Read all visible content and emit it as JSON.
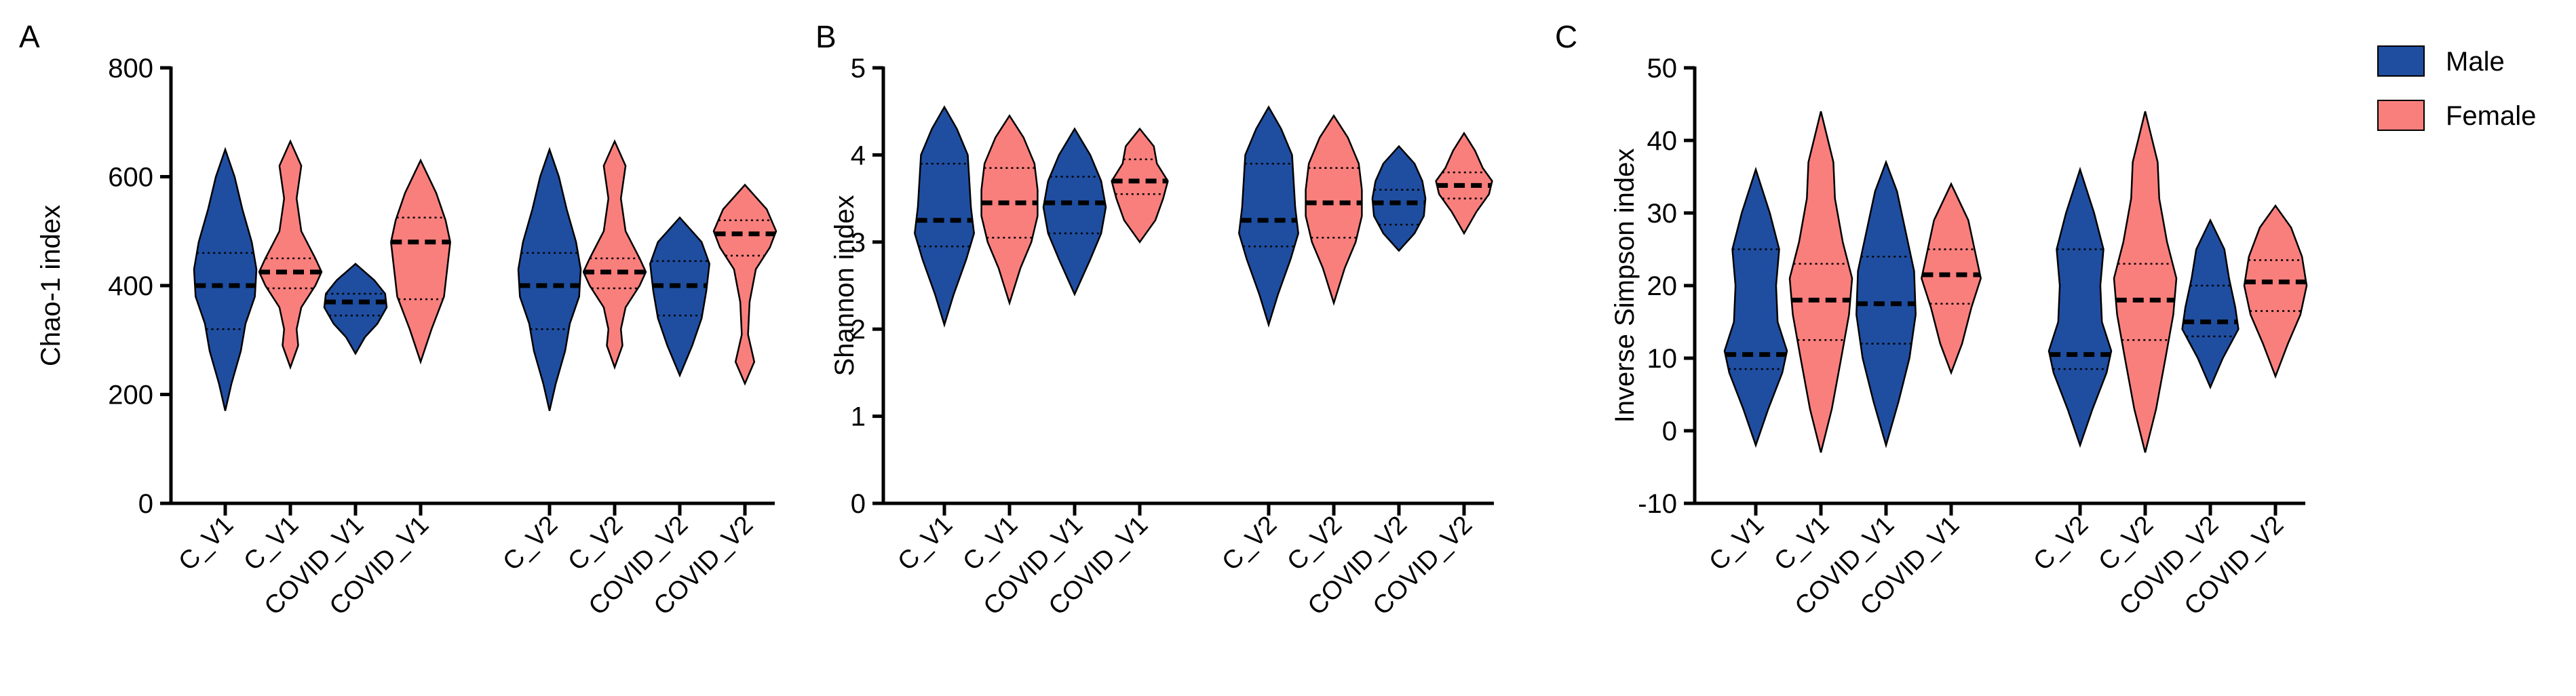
{
  "colors": {
    "male": "#1f4ea1",
    "female": "#f97f7d",
    "stroke": "#000000"
  },
  "legend": [
    {
      "label": "Male",
      "color": "#1f4ea1"
    },
    {
      "label": "Female",
      "color": "#f97f7d"
    }
  ],
  "chart_data": [
    {
      "panel": "A",
      "type": "violin",
      "ylabel": "Chao-1 index",
      "ylim": [
        0,
        800
      ],
      "yticks": [
        0,
        200,
        400,
        600,
        800
      ],
      "categories": [
        "C_V1",
        "C_V1",
        "COVID_V1",
        "COVID_V1",
        "C_V2",
        "C_V2",
        "COVID_V2",
        "COVID_V2"
      ],
      "groups": [
        {
          "sex": "male",
          "min": 170,
          "max": 650,
          "q1": 320,
          "median": 400,
          "q3": 460,
          "shape": [
            [
              170,
              0.0
            ],
            [
              220,
              0.2
            ],
            [
              280,
              0.5
            ],
            [
              330,
              0.65
            ],
            [
              380,
              0.95
            ],
            [
              430,
              1.0
            ],
            [
              480,
              0.85
            ],
            [
              540,
              0.55
            ],
            [
              600,
              0.3
            ],
            [
              650,
              0.0
            ]
          ]
        },
        {
          "sex": "female",
          "min": 250,
          "max": 665,
          "q1": 395,
          "median": 425,
          "q3": 450,
          "shape": [
            [
              250,
              0.0
            ],
            [
              290,
              0.25
            ],
            [
              320,
              0.2
            ],
            [
              360,
              0.35
            ],
            [
              400,
              0.8
            ],
            [
              425,
              1.0
            ],
            [
              450,
              0.8
            ],
            [
              500,
              0.35
            ],
            [
              560,
              0.2
            ],
            [
              620,
              0.35
            ],
            [
              665,
              0.0
            ]
          ]
        },
        {
          "sex": "male",
          "min": 275,
          "max": 440,
          "q1": 345,
          "median": 370,
          "q3": 385,
          "shape": [
            [
              275,
              0.0
            ],
            [
              305,
              0.3
            ],
            [
              330,
              0.7
            ],
            [
              360,
              1.0
            ],
            [
              385,
              0.95
            ],
            [
              410,
              0.6
            ],
            [
              440,
              0.0
            ]
          ]
        },
        {
          "sex": "female",
          "min": 260,
          "max": 630,
          "q1": 375,
          "median": 480,
          "q3": 525,
          "shape": [
            [
              260,
              0.0
            ],
            [
              320,
              0.35
            ],
            [
              380,
              0.75
            ],
            [
              430,
              0.85
            ],
            [
              480,
              0.95
            ],
            [
              520,
              0.8
            ],
            [
              570,
              0.5
            ],
            [
              630,
              0.0
            ]
          ]
        },
        {
          "sex": "male",
          "min": 170,
          "max": 650,
          "q1": 320,
          "median": 400,
          "q3": 460,
          "shape": [
            [
              170,
              0.0
            ],
            [
              220,
              0.2
            ],
            [
              280,
              0.5
            ],
            [
              330,
              0.65
            ],
            [
              380,
              0.95
            ],
            [
              430,
              1.0
            ],
            [
              480,
              0.85
            ],
            [
              540,
              0.55
            ],
            [
              600,
              0.3
            ],
            [
              650,
              0.0
            ]
          ]
        },
        {
          "sex": "female",
          "min": 250,
          "max": 665,
          "q1": 395,
          "median": 425,
          "q3": 450,
          "shape": [
            [
              250,
              0.0
            ],
            [
              290,
              0.25
            ],
            [
              320,
              0.2
            ],
            [
              360,
              0.35
            ],
            [
              400,
              0.8
            ],
            [
              425,
              1.0
            ],
            [
              450,
              0.8
            ],
            [
              500,
              0.35
            ],
            [
              560,
              0.2
            ],
            [
              620,
              0.35
            ],
            [
              665,
              0.0
            ]
          ]
        },
        {
          "sex": "male",
          "min": 235,
          "max": 525,
          "q1": 345,
          "median": 400,
          "q3": 445,
          "shape": [
            [
              235,
              0.0
            ],
            [
              290,
              0.4
            ],
            [
              340,
              0.7
            ],
            [
              390,
              0.85
            ],
            [
              440,
              0.95
            ],
            [
              480,
              0.7
            ],
            [
              525,
              0.0
            ]
          ]
        },
        {
          "sex": "female",
          "min": 220,
          "max": 585,
          "q1": 455,
          "median": 495,
          "q3": 520,
          "shape": [
            [
              220,
              0.0
            ],
            [
              260,
              0.3
            ],
            [
              310,
              0.1
            ],
            [
              370,
              0.15
            ],
            [
              430,
              0.35
            ],
            [
              470,
              0.8
            ],
            [
              500,
              1.0
            ],
            [
              540,
              0.7
            ],
            [
              585,
              0.0
            ]
          ]
        }
      ]
    },
    {
      "panel": "B",
      "type": "violin",
      "ylabel": "Shannon index",
      "ylim": [
        0,
        5
      ],
      "yticks": [
        0,
        1,
        2,
        3,
        4,
        5
      ],
      "categories": [
        "C_V1",
        "C_V1",
        "COVID_V1",
        "COVID_V1",
        "C_V2",
        "C_V2",
        "COVID_V2",
        "COVID_V2"
      ],
      "groups": [
        {
          "sex": "male",
          "min": 2.05,
          "max": 4.55,
          "q1": 2.95,
          "median": 3.25,
          "q3": 3.9,
          "shape": [
            [
              2.05,
              0.0
            ],
            [
              2.4,
              0.3
            ],
            [
              2.8,
              0.7
            ],
            [
              3.1,
              0.95
            ],
            [
              3.4,
              0.85
            ],
            [
              3.7,
              0.8
            ],
            [
              4.0,
              0.75
            ],
            [
              4.3,
              0.4
            ],
            [
              4.55,
              0.0
            ]
          ]
        },
        {
          "sex": "female",
          "min": 2.3,
          "max": 4.45,
          "q1": 3.05,
          "median": 3.45,
          "q3": 3.85,
          "shape": [
            [
              2.3,
              0.0
            ],
            [
              2.7,
              0.35
            ],
            [
              3.0,
              0.7
            ],
            [
              3.3,
              0.9
            ],
            [
              3.6,
              0.9
            ],
            [
              3.9,
              0.8
            ],
            [
              4.2,
              0.45
            ],
            [
              4.45,
              0.0
            ]
          ]
        },
        {
          "sex": "male",
          "min": 2.4,
          "max": 4.3,
          "q1": 3.1,
          "median": 3.45,
          "q3": 3.75,
          "shape": [
            [
              2.4,
              0.0
            ],
            [
              2.8,
              0.5
            ],
            [
              3.1,
              0.85
            ],
            [
              3.4,
              1.0
            ],
            [
              3.7,
              0.85
            ],
            [
              4.0,
              0.5
            ],
            [
              4.3,
              0.0
            ]
          ]
        },
        {
          "sex": "female",
          "min": 3.0,
          "max": 4.3,
          "q1": 3.55,
          "median": 3.7,
          "q3": 3.95,
          "shape": [
            [
              3.0,
              0.0
            ],
            [
              3.25,
              0.5
            ],
            [
              3.5,
              0.75
            ],
            [
              3.7,
              0.9
            ],
            [
              3.9,
              0.55
            ],
            [
              4.1,
              0.45
            ],
            [
              4.3,
              0.0
            ]
          ]
        },
        {
          "sex": "male",
          "min": 2.05,
          "max": 4.55,
          "q1": 2.95,
          "median": 3.25,
          "q3": 3.9,
          "shape": [
            [
              2.05,
              0.0
            ],
            [
              2.4,
              0.3
            ],
            [
              2.8,
              0.7
            ],
            [
              3.1,
              0.95
            ],
            [
              3.4,
              0.85
            ],
            [
              3.7,
              0.8
            ],
            [
              4.0,
              0.75
            ],
            [
              4.3,
              0.4
            ],
            [
              4.55,
              0.0
            ]
          ]
        },
        {
          "sex": "female",
          "min": 2.3,
          "max": 4.45,
          "q1": 3.05,
          "median": 3.45,
          "q3": 3.85,
          "shape": [
            [
              2.3,
              0.0
            ],
            [
              2.7,
              0.35
            ],
            [
              3.0,
              0.7
            ],
            [
              3.3,
              0.9
            ],
            [
              3.6,
              0.9
            ],
            [
              3.9,
              0.8
            ],
            [
              4.2,
              0.45
            ],
            [
              4.45,
              0.0
            ]
          ]
        },
        {
          "sex": "male",
          "min": 2.9,
          "max": 4.1,
          "q1": 3.2,
          "median": 3.45,
          "q3": 3.6,
          "shape": [
            [
              2.9,
              0.0
            ],
            [
              3.1,
              0.5
            ],
            [
              3.3,
              0.8
            ],
            [
              3.5,
              0.85
            ],
            [
              3.7,
              0.75
            ],
            [
              3.9,
              0.5
            ],
            [
              4.1,
              0.0
            ]
          ]
        },
        {
          "sex": "female",
          "min": 3.1,
          "max": 4.25,
          "q1": 3.5,
          "median": 3.65,
          "q3": 3.8,
          "shape": [
            [
              3.1,
              0.0
            ],
            [
              3.35,
              0.4
            ],
            [
              3.55,
              0.8
            ],
            [
              3.7,
              0.9
            ],
            [
              3.85,
              0.6
            ],
            [
              4.05,
              0.35
            ],
            [
              4.25,
              0.0
            ]
          ]
        }
      ]
    },
    {
      "panel": "C",
      "type": "violin",
      "ylabel": "Inverse Simpson index",
      "ylim": [
        -10,
        50
      ],
      "yticks": [
        -10,
        0,
        10,
        20,
        30,
        40,
        50
      ],
      "categories": [
        "C_V1",
        "C_V1",
        "COVID_V1",
        "COVID_V1",
        "C_V2",
        "C_V2",
        "COVID_V2",
        "COVID_V2"
      ],
      "groups": [
        {
          "sex": "male",
          "min": -2,
          "max": 36,
          "q1": 8.5,
          "median": 10.5,
          "q3": 25,
          "shape": [
            [
              -2,
              0.0
            ],
            [
              3,
              0.4
            ],
            [
              8,
              0.85
            ],
            [
              11,
              1.0
            ],
            [
              15,
              0.7
            ],
            [
              20,
              0.65
            ],
            [
              25,
              0.75
            ],
            [
              30,
              0.45
            ],
            [
              36,
              0.0
            ]
          ]
        },
        {
          "sex": "female",
          "min": -3,
          "max": 44,
          "q1": 12.5,
          "median": 18,
          "q3": 23,
          "shape": [
            [
              -3,
              0.0
            ],
            [
              3,
              0.35
            ],
            [
              10,
              0.65
            ],
            [
              16,
              0.9
            ],
            [
              21,
              1.0
            ],
            [
              26,
              0.7
            ],
            [
              32,
              0.45
            ],
            [
              37,
              0.4
            ],
            [
              44,
              0.0
            ]
          ]
        },
        {
          "sex": "male",
          "min": -2,
          "max": 37,
          "q1": 12,
          "median": 17.5,
          "q3": 24,
          "shape": [
            [
              -2,
              0.0
            ],
            [
              4,
              0.4
            ],
            [
              10,
              0.75
            ],
            [
              16,
              0.95
            ],
            [
              22,
              0.9
            ],
            [
              28,
              0.6
            ],
            [
              33,
              0.35
            ],
            [
              37,
              0.0
            ]
          ]
        },
        {
          "sex": "female",
          "min": 8,
          "max": 34,
          "q1": 17.5,
          "median": 21.5,
          "q3": 25,
          "shape": [
            [
              8,
              0.0
            ],
            [
              12,
              0.35
            ],
            [
              17,
              0.65
            ],
            [
              21,
              0.95
            ],
            [
              25,
              0.75
            ],
            [
              29,
              0.55
            ],
            [
              34,
              0.0
            ]
          ]
        },
        {
          "sex": "male",
          "min": -2,
          "max": 36,
          "q1": 8.5,
          "median": 10.5,
          "q3": 25,
          "shape": [
            [
              -2,
              0.0
            ],
            [
              3,
              0.4
            ],
            [
              8,
              0.85
            ],
            [
              11,
              1.0
            ],
            [
              15,
              0.7
            ],
            [
              20,
              0.65
            ],
            [
              25,
              0.75
            ],
            [
              30,
              0.45
            ],
            [
              36,
              0.0
            ]
          ]
        },
        {
          "sex": "female",
          "min": -3,
          "max": 44,
          "q1": 12.5,
          "median": 18,
          "q3": 23,
          "shape": [
            [
              -3,
              0.0
            ],
            [
              3,
              0.35
            ],
            [
              10,
              0.65
            ],
            [
              16,
              0.9
            ],
            [
              21,
              1.0
            ],
            [
              26,
              0.7
            ],
            [
              32,
              0.45
            ],
            [
              37,
              0.4
            ],
            [
              44,
              0.0
            ]
          ]
        },
        {
          "sex": "male",
          "min": 6,
          "max": 29,
          "q1": 13,
          "median": 15,
          "q3": 20,
          "shape": [
            [
              6,
              0.0
            ],
            [
              10,
              0.4
            ],
            [
              14,
              0.9
            ],
            [
              17,
              0.8
            ],
            [
              21,
              0.6
            ],
            [
              25,
              0.45
            ],
            [
              29,
              0.0
            ]
          ]
        },
        {
          "sex": "female",
          "min": 7.5,
          "max": 31,
          "q1": 16.5,
          "median": 20.5,
          "q3": 23.5,
          "shape": [
            [
              7.5,
              0.0
            ],
            [
              12,
              0.4
            ],
            [
              16,
              0.8
            ],
            [
              20,
              1.0
            ],
            [
              24,
              0.85
            ],
            [
              28,
              0.5
            ],
            [
              31,
              0.0
            ]
          ]
        }
      ]
    }
  ]
}
